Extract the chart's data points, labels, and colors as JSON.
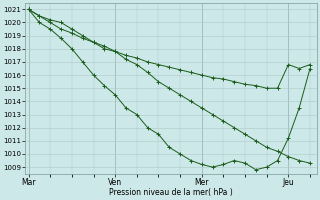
{
  "xlabel": "Pression niveau de la mer( hPa )",
  "background_color": "#cde8e8",
  "grid_color": "#b0c8c8",
  "line_color": "#1a5c1a",
  "ylim": [
    1008.5,
    1021.5
  ],
  "yticks": [
    1009,
    1010,
    1011,
    1012,
    1013,
    1014,
    1015,
    1016,
    1017,
    1018,
    1019,
    1020,
    1021
  ],
  "xtick_labels": [
    "Mar",
    "Ven",
    "Mer",
    "Jeu"
  ],
  "xtick_positions": [
    0,
    24,
    48,
    72
  ],
  "xlim": [
    -1,
    80
  ],
  "line1_x": [
    0,
    3,
    6,
    9,
    12,
    15,
    18,
    21,
    24,
    27,
    30,
    33,
    36,
    39,
    42,
    45,
    48,
    51,
    54,
    57,
    60,
    63,
    66,
    69,
    72,
    75,
    78
  ],
  "line1_y": [
    1021.0,
    1020.5,
    1020.2,
    1020.0,
    1019.5,
    1019.0,
    1018.5,
    1018.0,
    1017.8,
    1017.2,
    1016.8,
    1016.2,
    1015.5,
    1015.0,
    1014.5,
    1014.0,
    1013.5,
    1013.0,
    1012.5,
    1012.0,
    1011.5,
    1011.0,
    1010.5,
    1010.2,
    1009.8,
    1009.5,
    1009.3
  ],
  "line2_x": [
    0,
    3,
    6,
    9,
    12,
    15,
    18,
    21,
    24,
    27,
    30,
    33,
    36,
    39,
    42,
    45,
    48,
    51,
    54,
    57,
    60,
    63,
    66,
    69,
    72,
    75,
    78
  ],
  "line2_y": [
    1021.0,
    1020.0,
    1019.5,
    1018.8,
    1018.0,
    1017.0,
    1016.0,
    1015.2,
    1014.5,
    1013.5,
    1013.0,
    1012.0,
    1011.5,
    1010.5,
    1010.0,
    1009.5,
    1009.2,
    1009.0,
    1009.2,
    1009.5,
    1009.3,
    1008.8,
    1009.0,
    1009.5,
    1011.2,
    1013.5,
    1016.5
  ],
  "line3_x": [
    0,
    3,
    6,
    9,
    12,
    15,
    18,
    21,
    24,
    27,
    30,
    33,
    36,
    39,
    42,
    45,
    48,
    51,
    54,
    57,
    60,
    63,
    66,
    69,
    72,
    75,
    78
  ],
  "line3_y": [
    1021.0,
    1020.5,
    1020.0,
    1019.5,
    1019.2,
    1018.8,
    1018.5,
    1018.2,
    1017.8,
    1017.5,
    1017.3,
    1017.0,
    1016.8,
    1016.6,
    1016.4,
    1016.2,
    1016.0,
    1015.8,
    1015.7,
    1015.5,
    1015.3,
    1015.2,
    1015.0,
    1015.0,
    1016.8,
    1016.5,
    1016.8
  ]
}
